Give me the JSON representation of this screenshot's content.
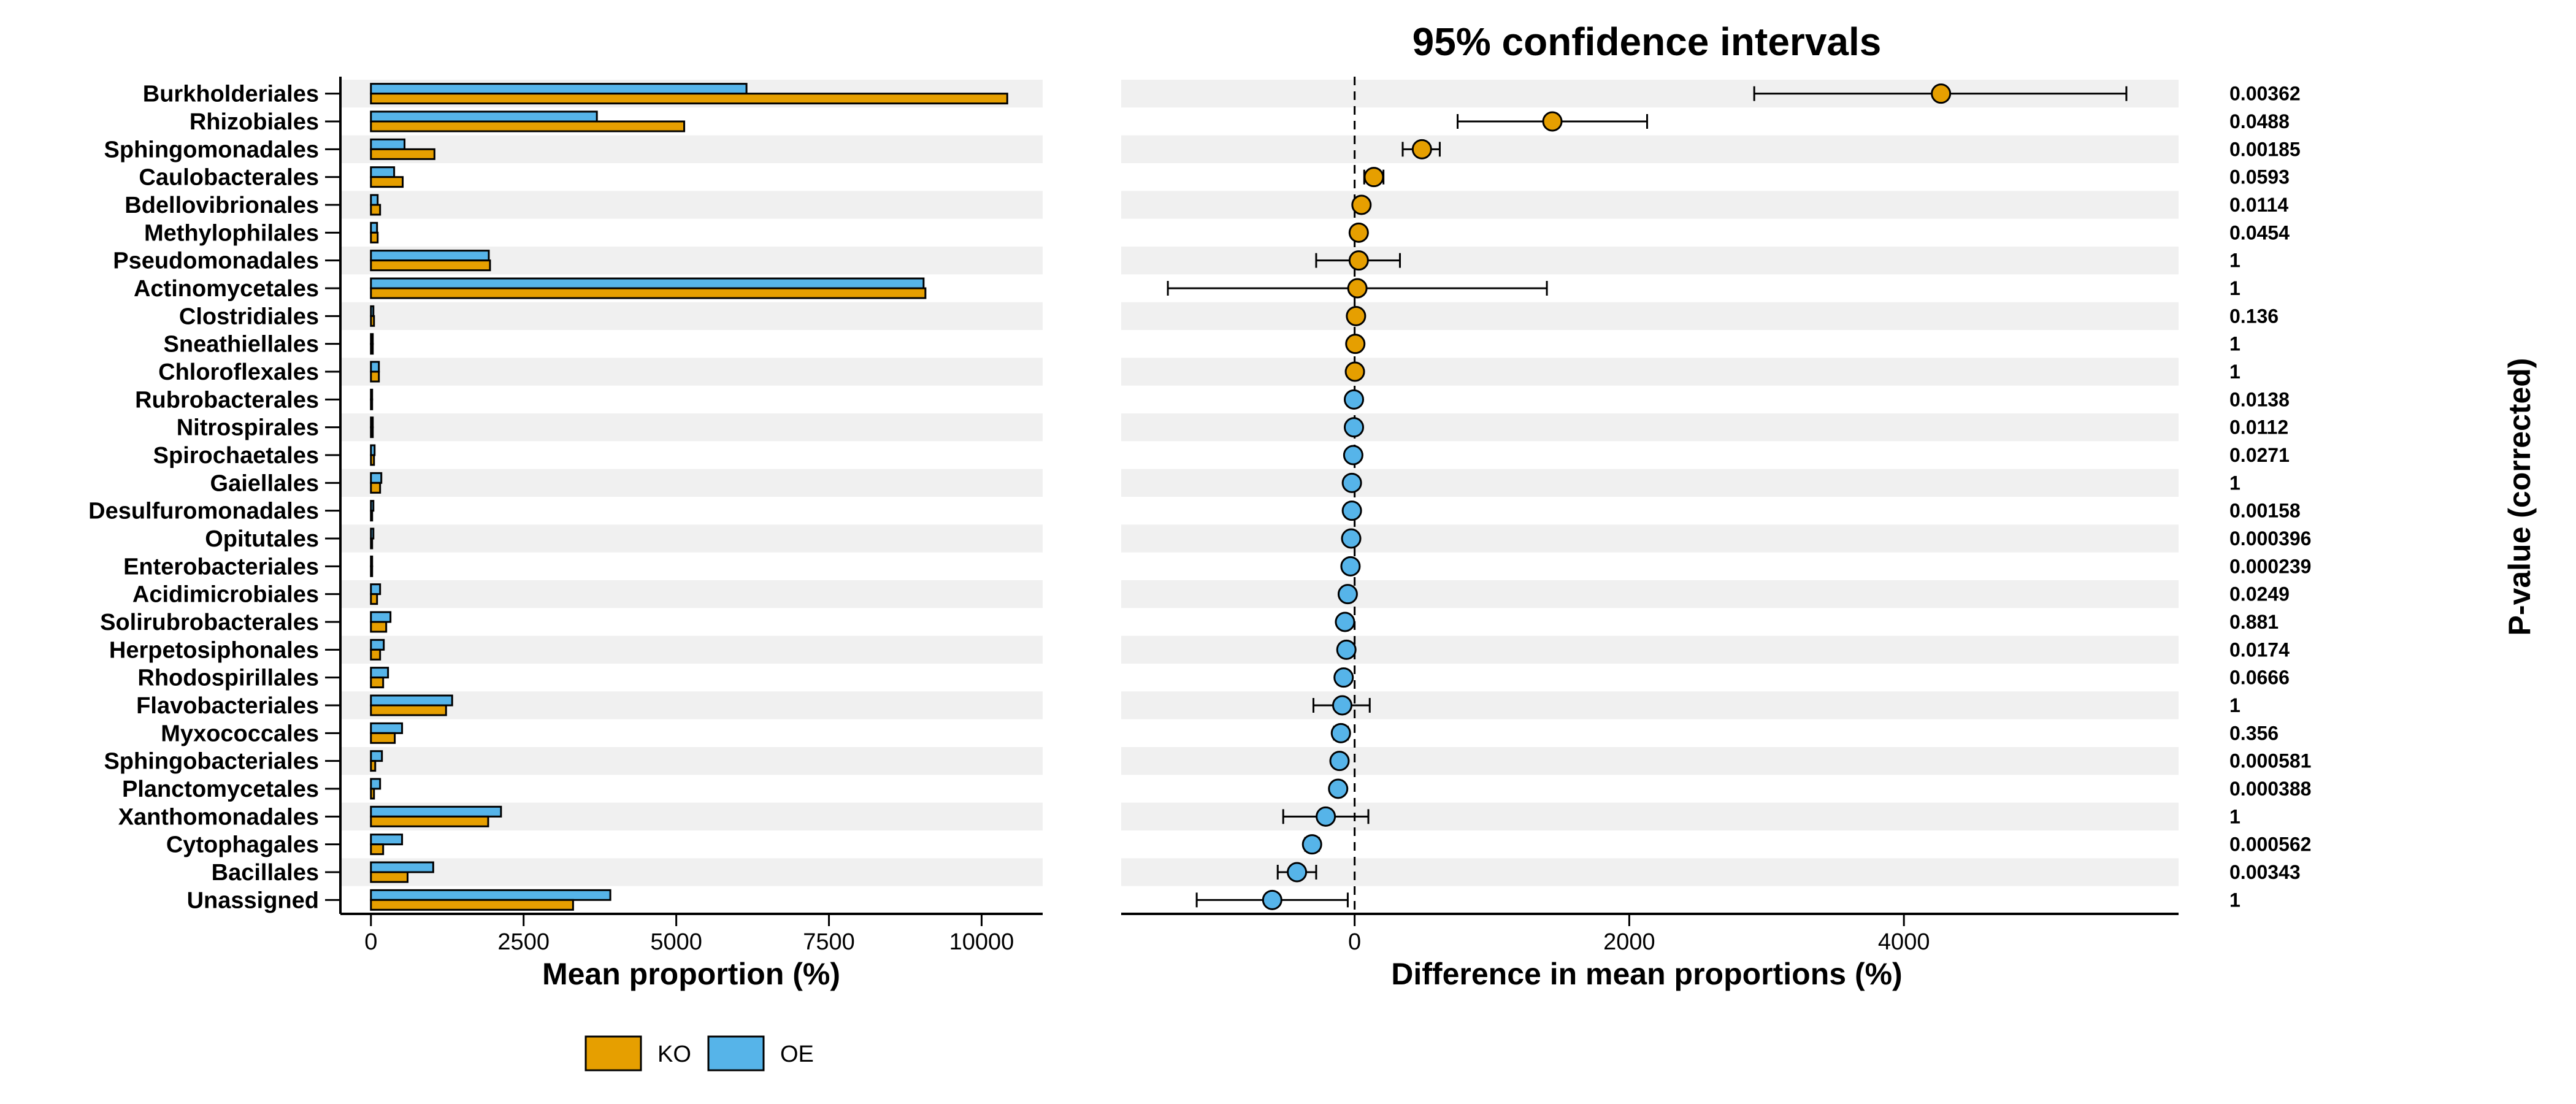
{
  "colors": {
    "KO": "#E69F00",
    "OE": "#56B4E9",
    "stripe": "#F0F0F0"
  },
  "chart_data": [
    {
      "type": "bar",
      "orientation": "horizontal",
      "xlabel": "Mean proportion (%)",
      "xlim": [
        -500,
        11000
      ],
      "xticks": [
        0,
        2500,
        5000,
        7500,
        10000
      ],
      "xtick_labels": [
        "0",
        "2500",
        "5000",
        "7500",
        "10000"
      ],
      "categories": [
        "Burkholderiales",
        "Rhizobiales",
        "Sphingomonadales",
        "Caulobacterales",
        "Bdellovibrionales",
        "Methylophilales",
        "Pseudomonadales",
        "Actinomycetales",
        "Clostridiales",
        "Sneathiellales",
        "Chloroflexales",
        "Rubrobacterales",
        "Nitrospirales",
        "Spirochaetales",
        "Gaiellales",
        "Desulfuromonadales",
        "Opitutales",
        "Enterobacteriales",
        "Acidimicrobiales",
        "Solirubrobacterales",
        "Herpetosiphonales",
        "Rhodospirillales",
        "Flavobacteriales",
        "Myxococcales",
        "Sphingobacteriales",
        "Planctomycetales",
        "Xanthomonadales",
        "Cytophagales",
        "Bacillales",
        "Unassigned"
      ],
      "series": [
        {
          "name": "OE",
          "values": [
            6150,
            3700,
            550,
            380,
            110,
            100,
            1930,
            9050,
            40,
            30,
            130,
            20,
            30,
            60,
            170,
            40,
            40,
            20,
            150,
            320,
            210,
            280,
            1330,
            510,
            180,
            150,
            2130,
            510,
            1020,
            3920
          ]
        },
        {
          "name": "KO",
          "values": [
            10420,
            5130,
            1040,
            520,
            150,
            110,
            1950,
            9080,
            50,
            30,
            130,
            20,
            30,
            50,
            150,
            20,
            20,
            20,
            100,
            250,
            150,
            200,
            1230,
            390,
            70,
            50,
            1920,
            200,
            600,
            3310
          ]
        }
      ],
      "legend": {
        "position": "bottom",
        "entries": [
          "KO",
          "OE"
        ]
      }
    },
    {
      "type": "scatter",
      "title": "95% confidence intervals",
      "xlabel": "Difference in mean proportions (%)",
      "y2label": "P-value (corrected)",
      "xlim": [
        -1700,
        6000
      ],
      "xticks": [
        0,
        2000,
        4000
      ],
      "xtick_labels": [
        "0",
        "2000",
        "4000"
      ],
      "reference_line": 0,
      "points": [
        {
          "category": "Burkholderiales",
          "diff": 4270,
          "low": 2910,
          "high": 5620,
          "group": "KO",
          "pvalue": "0.00362"
        },
        {
          "category": "Rhizobiales",
          "diff": 1440,
          "low": 750,
          "high": 2130,
          "group": "KO",
          "pvalue": "0.0488"
        },
        {
          "category": "Sphingomonadales",
          "diff": 490,
          "low": 350,
          "high": 620,
          "group": "KO",
          "pvalue": "0.00185"
        },
        {
          "category": "Caulobacterales",
          "diff": 140,
          "low": 70,
          "high": 210,
          "group": "KO",
          "pvalue": "0.0593"
        },
        {
          "category": "Bdellovibrionales",
          "diff": 50,
          "low": 20,
          "high": 80,
          "group": "KO",
          "pvalue": "0.0114"
        },
        {
          "category": "Methylophilales",
          "diff": 30,
          "low": 10,
          "high": 50,
          "group": "KO",
          "pvalue": "0.0454"
        },
        {
          "category": "Pseudomonadales",
          "diff": 30,
          "low": -280,
          "high": 330,
          "group": "KO",
          "pvalue": "1"
        },
        {
          "category": "Actinomycetales",
          "diff": 20,
          "low": -1360,
          "high": 1400,
          "group": "KO",
          "pvalue": "1"
        },
        {
          "category": "Clostridiales",
          "diff": 10,
          "low": -10,
          "high": 30,
          "group": "KO",
          "pvalue": "0.136"
        },
        {
          "category": "Sneathiellales",
          "diff": 5,
          "low": -10,
          "high": 20,
          "group": "KO",
          "pvalue": "1"
        },
        {
          "category": "Chloroflexales",
          "diff": 2,
          "low": -15,
          "high": 20,
          "group": "KO",
          "pvalue": "1"
        },
        {
          "category": "Rubrobacterales",
          "diff": -5,
          "low": -15,
          "high": 5,
          "group": "OE",
          "pvalue": "0.0138"
        },
        {
          "category": "Nitrospirales",
          "diff": -5,
          "low": -15,
          "high": 5,
          "group": "OE",
          "pvalue": "0.0112"
        },
        {
          "category": "Spirochaetales",
          "diff": -10,
          "low": -20,
          "high": 0,
          "group": "OE",
          "pvalue": "0.0271"
        },
        {
          "category": "Gaiellales",
          "diff": -20,
          "low": -40,
          "high": 0,
          "group": "OE",
          "pvalue": "1"
        },
        {
          "category": "Desulfuromonadales",
          "diff": -20,
          "low": -35,
          "high": -5,
          "group": "OE",
          "pvalue": "0.00158"
        },
        {
          "category": "Opitutales",
          "diff": -25,
          "low": -40,
          "high": -10,
          "group": "OE",
          "pvalue": "0.000396"
        },
        {
          "category": "Enterobacteriales",
          "diff": -30,
          "low": -45,
          "high": -15,
          "group": "OE",
          "pvalue": "0.000239"
        },
        {
          "category": "Acidimicrobiales",
          "diff": -50,
          "low": -70,
          "high": -30,
          "group": "OE",
          "pvalue": "0.0249"
        },
        {
          "category": "Solirubrobacterales",
          "diff": -70,
          "low": -100,
          "high": -40,
          "group": "OE",
          "pvalue": "0.881"
        },
        {
          "category": "Herpetosiphonales",
          "diff": -60,
          "low": -90,
          "high": -30,
          "group": "OE",
          "pvalue": "0.0174"
        },
        {
          "category": "Rhodospirillales",
          "diff": -80,
          "low": -110,
          "high": -50,
          "group": "OE",
          "pvalue": "0.0666"
        },
        {
          "category": "Flavobacteriales",
          "diff": -90,
          "low": -300,
          "high": 110,
          "group": "OE",
          "pvalue": "1"
        },
        {
          "category": "Myxococcales",
          "diff": -100,
          "low": -150,
          "high": -50,
          "group": "OE",
          "pvalue": "0.356"
        },
        {
          "category": "Sphingobacteriales",
          "diff": -110,
          "low": -140,
          "high": -80,
          "group": "OE",
          "pvalue": "0.000581"
        },
        {
          "category": "Planctomycetales",
          "diff": -120,
          "low": -150,
          "high": -90,
          "group": "OE",
          "pvalue": "0.000388"
        },
        {
          "category": "Xanthomonadales",
          "diff": -210,
          "low": -520,
          "high": 100,
          "group": "OE",
          "pvalue": "1"
        },
        {
          "category": "Cytophagales",
          "diff": -310,
          "low": -360,
          "high": -260,
          "group": "OE",
          "pvalue": "0.000562"
        },
        {
          "category": "Bacillales",
          "diff": -420,
          "low": -560,
          "high": -280,
          "group": "OE",
          "pvalue": "0.00343"
        },
        {
          "category": "Unassigned",
          "diff": -600,
          "low": -1150,
          "high": -50,
          "group": "OE",
          "pvalue": "1"
        }
      ]
    }
  ]
}
